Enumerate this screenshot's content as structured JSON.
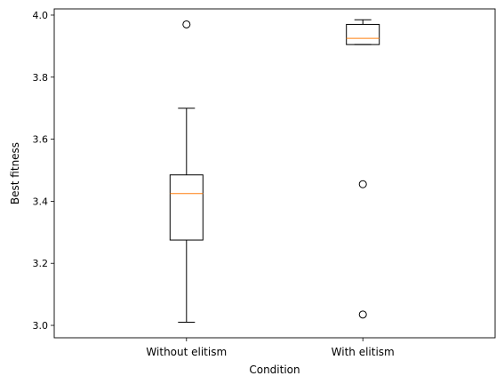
{
  "chart_data": {
    "type": "boxplot",
    "title": "",
    "xlabel": "Condition",
    "ylabel": "Best fitness",
    "categories": [
      "Without elitism",
      "With elitism"
    ],
    "ylim": [
      2.96,
      4.02
    ],
    "yticks": [
      3.0,
      3.2,
      3.4,
      3.6,
      3.8,
      4.0
    ],
    "ytick_labels": [
      "3.0",
      "3.2",
      "3.4",
      "3.6",
      "3.8",
      "4.0"
    ],
    "boxes": [
      {
        "label": "Without elitism",
        "whisker_low": 3.01,
        "q1": 3.275,
        "median": 3.425,
        "q3": 3.485,
        "whisker_high": 3.7,
        "outliers": [
          3.97
        ]
      },
      {
        "label": "With elitism",
        "whisker_low": 3.905,
        "q1": 3.905,
        "median": 3.925,
        "q3": 3.97,
        "whisker_high": 3.985,
        "outliers": [
          3.455,
          3.035
        ]
      }
    ],
    "colors": {
      "box": "#000000",
      "median": "#ff7f0e",
      "outlier_edge": "#000000"
    },
    "grid": false,
    "legend": "none"
  }
}
